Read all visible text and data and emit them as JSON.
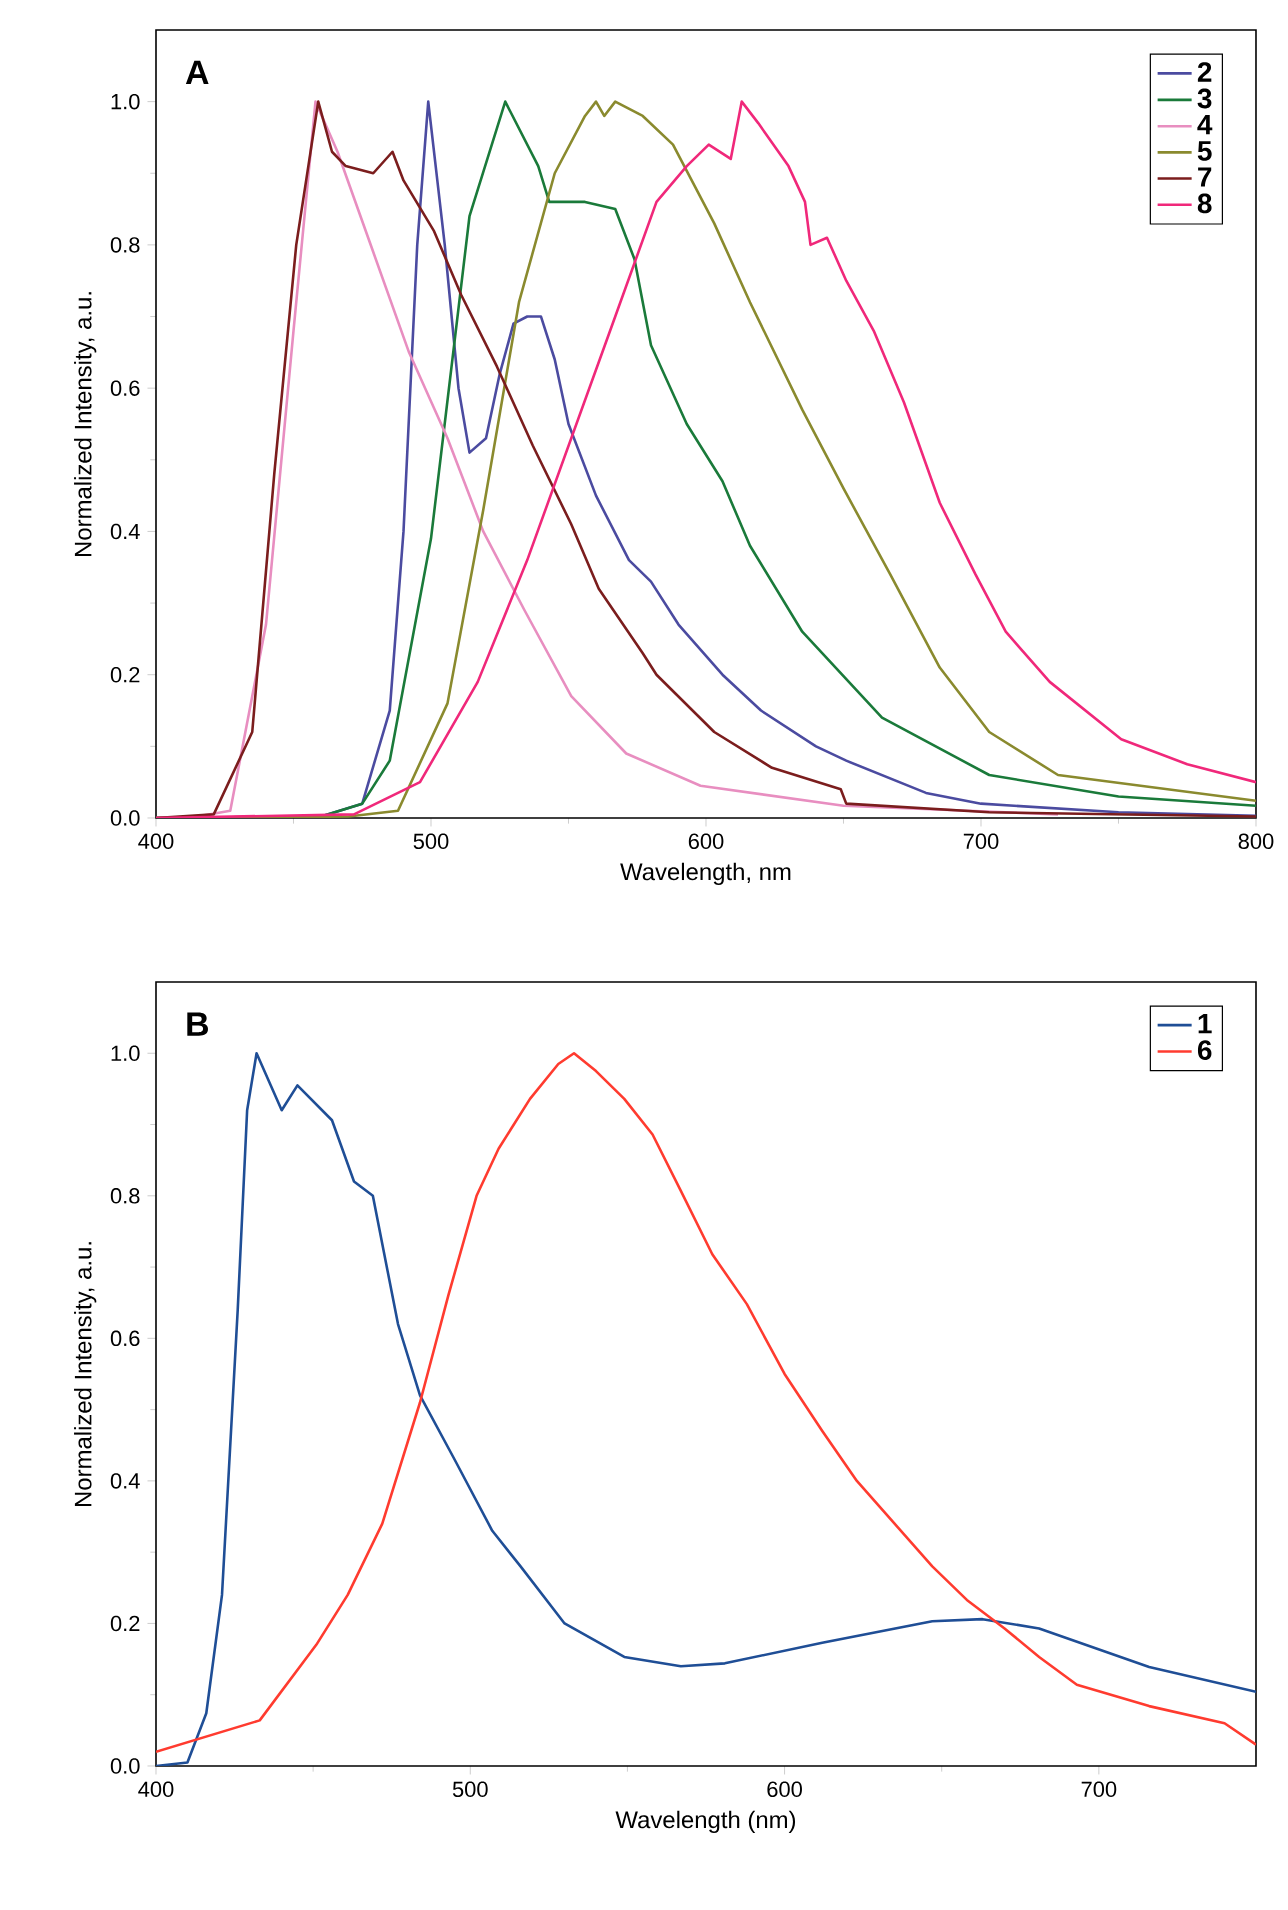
{
  "chart_data": [
    {
      "type": "line",
      "title": "A",
      "xlabel": "Wavelength, nm",
      "ylabel": "Normalized Intensity, a.u.",
      "xlim": [
        400,
        800
      ],
      "ylim": [
        0,
        1.1
      ],
      "xticks": [
        400,
        500,
        600,
        700,
        800
      ],
      "yticks": [
        {
          "value": 0,
          "label": "0.0"
        },
        {
          "value": 0.2,
          "label": "0.2"
        },
        {
          "value": 0.4,
          "label": "0.4"
        },
        {
          "value": 0.6,
          "label": "0.6"
        },
        {
          "value": 0.8,
          "label": "0.8"
        },
        {
          "value": 1.0,
          "label": "1.0"
        }
      ],
      "legend": "top right",
      "line_style": "solid",
      "marker": "none",
      "series": [
        {
          "name": "2",
          "color": "#4b4ba0",
          "x": [
            400,
            460,
            475,
            485,
            490,
            495,
            499,
            505,
            510,
            514,
            520,
            525,
            530,
            535,
            540,
            545,
            550,
            560,
            572,
            580,
            590,
            606,
            620,
            640,
            651,
            680,
            700,
            750,
            800
          ],
          "values": [
            0,
            0.002,
            0.02,
            0.15,
            0.4,
            0.8,
            1.0,
            0.8,
            0.6,
            0.51,
            0.53,
            0.62,
            0.69,
            0.7,
            0.7,
            0.64,
            0.55,
            0.45,
            0.36,
            0.33,
            0.27,
            0.2,
            0.15,
            0.1,
            0.08,
            0.035,
            0.02,
            0.008,
            0.003
          ]
        },
        {
          "name": "3",
          "color": "#1a7a3a",
          "x": [
            400,
            460,
            475,
            485,
            500,
            514,
            527,
            539,
            543,
            556,
            567,
            574,
            580,
            593,
            606,
            616,
            635,
            664,
            703,
            750,
            800
          ],
          "values": [
            0,
            0.002,
            0.02,
            0.08,
            0.39,
            0.84,
            1.0,
            0.91,
            0.86,
            0.86,
            0.85,
            0.78,
            0.66,
            0.55,
            0.47,
            0.38,
            0.26,
            0.14,
            0.06,
            0.03,
            0.017
          ]
        },
        {
          "name": "4",
          "color": "#e88ec0",
          "x": [
            400,
            415,
            427,
            440,
            450,
            458,
            466,
            479,
            492,
            506,
            519,
            534,
            551,
            571,
            598,
            650,
            728
          ],
          "values": [
            0,
            0.002,
            0.01,
            0.27,
            0.68,
            1.0,
            0.93,
            0.79,
            0.65,
            0.53,
            0.4,
            0.29,
            0.17,
            0.09,
            0.045,
            0.017,
            0.005
          ]
        },
        {
          "name": "5",
          "color": "#8a8a2e",
          "x": [
            400,
            470,
            488,
            506,
            519,
            532,
            545,
            556,
            560,
            563,
            567,
            577,
            588,
            603,
            616,
            635,
            650,
            667,
            685,
            703,
            728,
            800
          ],
          "values": [
            0,
            0.002,
            0.01,
            0.16,
            0.43,
            0.72,
            0.9,
            0.98,
            1.0,
            0.98,
            1.0,
            0.98,
            0.94,
            0.83,
            0.72,
            0.57,
            0.46,
            0.34,
            0.21,
            0.12,
            0.06,
            0.024
          ]
        },
        {
          "name": "7",
          "color": "#7b1d1d",
          "x": [
            400,
            421,
            435,
            443,
            451,
            459,
            464,
            469,
            479,
            486,
            490,
            501,
            511,
            524,
            537,
            551,
            561,
            577,
            582,
            603,
            624,
            649,
            651,
            703,
            800
          ],
          "values": [
            0,
            0.005,
            0.12,
            0.48,
            0.8,
            1.0,
            0.93,
            0.91,
            0.9,
            0.93,
            0.89,
            0.82,
            0.73,
            0.63,
            0.52,
            0.41,
            0.32,
            0.23,
            0.2,
            0.12,
            0.07,
            0.04,
            0.02,
            0.008,
            0.002
          ]
        },
        {
          "name": "8",
          "color": "#f0287a",
          "x": [
            400,
            472,
            496,
            517,
            535,
            551,
            567,
            582,
            593,
            601,
            609,
            613,
            619,
            630,
            636,
            638,
            644,
            651,
            661,
            672,
            685,
            698,
            709,
            725,
            751,
            775,
            800
          ],
          "values": [
            0,
            0.005,
            0.05,
            0.19,
            0.36,
            0.53,
            0.7,
            0.86,
            0.91,
            0.94,
            0.92,
            1.0,
            0.97,
            0.91,
            0.86,
            0.8,
            0.81,
            0.75,
            0.68,
            0.58,
            0.44,
            0.34,
            0.26,
            0.19,
            0.11,
            0.075,
            0.05
          ]
        }
      ]
    },
    {
      "type": "line",
      "title": "B",
      "xlabel": "Wavelength (nm)",
      "ylabel": "Normalized Intensity, a.u.",
      "xlim": [
        400,
        750
      ],
      "ylim": [
        0,
        1.1
      ],
      "xticks": [
        400,
        500,
        600,
        700
      ],
      "yticks": [
        {
          "value": 0,
          "label": "0.0"
        },
        {
          "value": 0.2,
          "label": "0.2"
        },
        {
          "value": 0.4,
          "label": "0.4"
        },
        {
          "value": 0.6,
          "label": "0.6"
        },
        {
          "value": 0.8,
          "label": "0.8"
        },
        {
          "value": 1.0,
          "label": "1.0"
        }
      ],
      "legend": "top right",
      "line_style": "solid",
      "marker": "none",
      "series": [
        {
          "name": "1",
          "color": "#1f4e96",
          "x": [
            400,
            410,
            416,
            421,
            426,
            429,
            432,
            440,
            445,
            456,
            463,
            469,
            477,
            484,
            495,
            507,
            516,
            530,
            549,
            567,
            581,
            612,
            647,
            663,
            681,
            716,
            750
          ],
          "values": [
            0,
            0.005,
            0.074,
            0.24,
            0.64,
            0.92,
            1.0,
            0.92,
            0.955,
            0.906,
            0.82,
            0.8,
            0.62,
            0.52,
            0.43,
            0.33,
            0.28,
            0.2,
            0.153,
            0.14,
            0.144,
            0.173,
            0.203,
            0.206,
            0.193,
            0.139,
            0.104
          ]
        },
        {
          "name": "6",
          "color": "#ff3b2f",
          "x": [
            400,
            433,
            451,
            461,
            472,
            484,
            493,
            502,
            509,
            519,
            528,
            533,
            540,
            549,
            558,
            567,
            577,
            588,
            600,
            612,
            623,
            635,
            647,
            658,
            670,
            681,
            693,
            716,
            740,
            750
          ],
          "values": [
            0.02,
            0.064,
            0.17,
            0.24,
            0.34,
            0.51,
            0.66,
            0.8,
            0.866,
            0.936,
            0.985,
            1.0,
            0.975,
            0.936,
            0.886,
            0.807,
            0.718,
            0.648,
            0.55,
            0.47,
            0.4,
            0.34,
            0.28,
            0.233,
            0.193,
            0.153,
            0.114,
            0.084,
            0.06,
            0.03
          ]
        }
      ]
    }
  ]
}
